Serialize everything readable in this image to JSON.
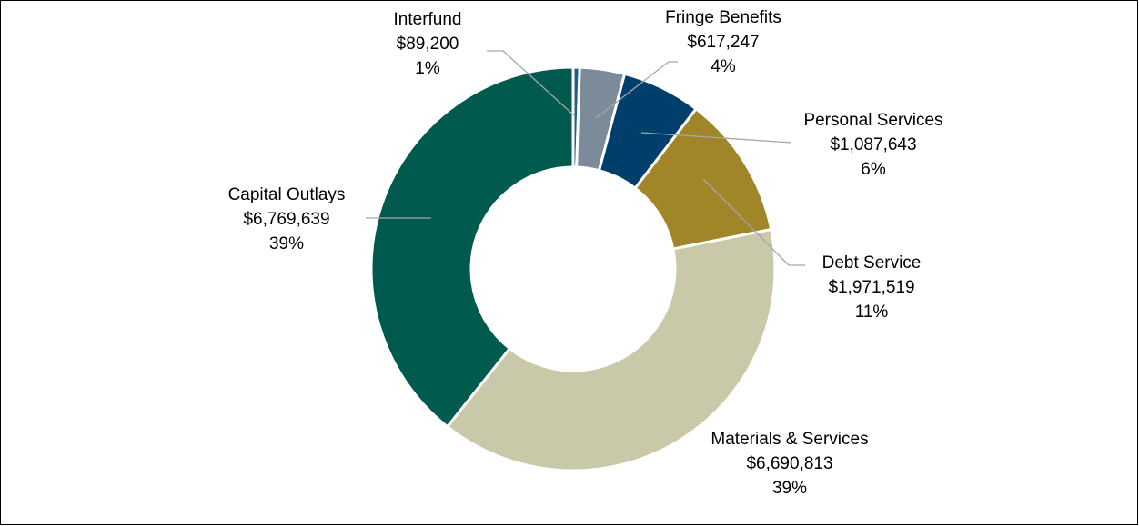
{
  "chart_data": {
    "type": "donut",
    "categories": [
      "Interfund",
      "Fringe Benefits",
      "Personal Services",
      "Debt Service",
      "Materials & Services",
      "Capital Outlays"
    ],
    "values": [
      89200,
      617247,
      1087643,
      1971519,
      6690813,
      6769639
    ],
    "value_labels": [
      "$89,200",
      "$617,247",
      "$1,087,643",
      "$1,971,519",
      "$6,690,813",
      "$6,769,639"
    ],
    "percents": [
      1,
      4,
      6,
      11,
      39,
      39
    ],
    "percent_labels": [
      "1%",
      "4%",
      "6%",
      "11%",
      "39%",
      "39%"
    ],
    "colors": [
      "#1d5f8a",
      "#7b8b99",
      "#003f6b",
      "#a08629",
      "#c9c8a8",
      "#005a4e"
    ]
  }
}
